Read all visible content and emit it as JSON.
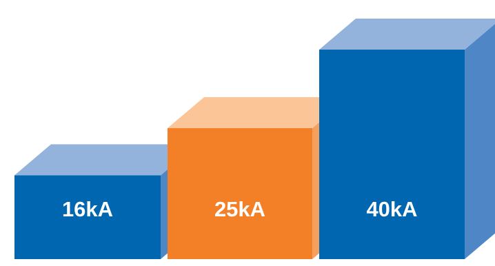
{
  "chart_data": {
    "type": "bar",
    "style": "3d-steps",
    "categories": [
      "16kA",
      "25kA",
      "40kA"
    ],
    "values": [
      16,
      25,
      40
    ],
    "unit": "kA",
    "colors": [
      {
        "front": "#0066b0",
        "top": "#93b3dc",
        "side": "#4f86c6"
      },
      {
        "front": "#f38027",
        "top": "#fbc597",
        "side": "#f6a060"
      },
      {
        "front": "#0066b0",
        "top": "#93b3dc",
        "side": "#4f86c6"
      }
    ]
  }
}
